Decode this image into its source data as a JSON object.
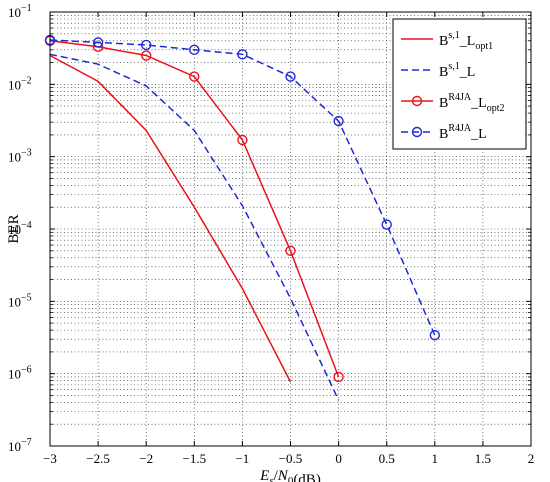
{
  "chart_data": {
    "type": "line",
    "title": "",
    "xlabel": {
      "main": "E",
      "sub": "s",
      "slash": "/N",
      "sub2": "0",
      "unit": "(dB)"
    },
    "ylabel": "BER",
    "xlim": [
      -3,
      2
    ],
    "ylim_log10": [
      -7,
      -1
    ],
    "yscale": "log",
    "grid": "dotted-major-minor",
    "legend_position": "top-right",
    "x_ticks": [
      -3,
      -2.5,
      -2,
      -1.5,
      -1,
      -0.5,
      0,
      0.5,
      1,
      1.5,
      2
    ],
    "x_tick_labels": [
      "−3",
      "−2.5",
      "−2",
      "−1.5",
      "−1",
      "−0.5",
      "0",
      "0.5",
      "1",
      "1.5",
      "2"
    ],
    "y_ticks_exp": [
      -7,
      -6,
      -5,
      -4,
      -3,
      -2,
      -1
    ],
    "y_tick_base": "10",
    "y_tick_exps": [
      "−7",
      "−6",
      "−5",
      "−4",
      "−3",
      "−2",
      "−1"
    ],
    "series": [
      {
        "name": {
          "base": "B",
          "sup": "s,1",
          "rest": "_L",
          "sub": "opt1"
        },
        "color": "#e8141c",
        "dash": "solid",
        "marker": "none",
        "x": [
          -3,
          -2.5,
          -2,
          -1.5,
          -1,
          -0.5
        ],
        "y": [
          0.025,
          0.011,
          0.0023,
          0.0002,
          1.5e-05,
          7.7e-07
        ]
      },
      {
        "name": {
          "base": "B",
          "sup": "s,1",
          "rest": "_L",
          "sub": ""
        },
        "color": "#1e2ad4",
        "dash": "dashed",
        "marker": "none",
        "x": [
          -3,
          -2.5,
          -2,
          -1.5,
          -1,
          -0.5,
          0
        ],
        "y": [
          0.026,
          0.019,
          0.0095,
          0.0023,
          0.00021,
          1.1e-05,
          4.3e-07
        ]
      },
      {
        "name": {
          "base": "B",
          "sup": "R4JA",
          "rest": "_L",
          "sub": "opt2"
        },
        "color": "#e8141c",
        "dash": "solid",
        "marker": "circle",
        "x": [
          -3,
          -2.5,
          -2,
          -1.5,
          -1,
          -0.5,
          0
        ],
        "y": [
          0.04,
          0.033,
          0.025,
          0.0128,
          0.0017,
          5e-05,
          9e-07
        ]
      },
      {
        "name": {
          "base": "B",
          "sup": "R4JA",
          "rest": "_L",
          "sub": ""
        },
        "color": "#1e2ad4",
        "dash": "dashed",
        "marker": "circle",
        "x": [
          -3,
          -2.5,
          -2,
          -1.5,
          -1,
          -0.5,
          0,
          0.5,
          1
        ],
        "y": [
          0.041,
          0.038,
          0.035,
          0.03,
          0.026,
          0.0128,
          0.0031,
          0.000115,
          3.4e-06
        ]
      }
    ]
  }
}
